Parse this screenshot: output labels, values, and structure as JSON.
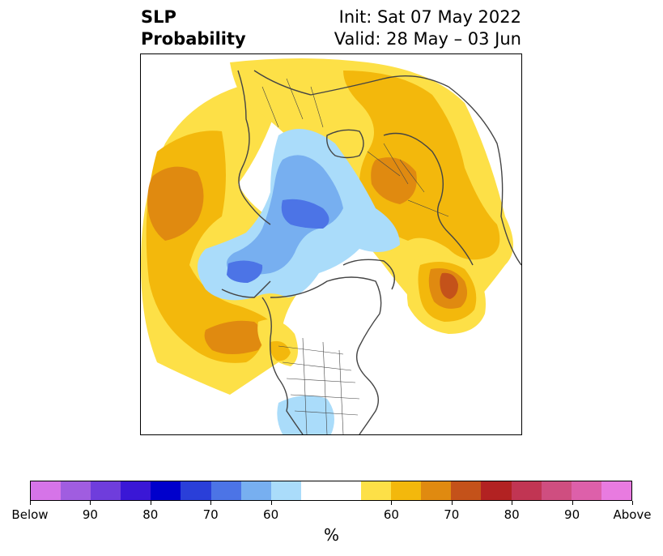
{
  "title": {
    "left_line1": "SLP",
    "left_line2": "Probability",
    "right_line1": "Init: Sat 07 May 2022",
    "right_line2": "Valid: 28 May – 03 Jun"
  },
  "colorbar": {
    "colors": [
      "#d674e8",
      "#a05de0",
      "#6f3ddc",
      "#3a17d6",
      "#0000cc",
      "#2a3fd9",
      "#4c74e6",
      "#77aff0",
      "#aadcfa",
      "#ffffff",
      "#ffffff",
      "#fde047",
      "#f3b80c",
      "#e08a10",
      "#c4521a",
      "#b22222",
      "#c13553",
      "#cf4e80",
      "#dd60aa",
      "#e87be0"
    ],
    "tick_labels": [
      "Below",
      "90",
      "80",
      "70",
      "60",
      "60",
      "70",
      "80",
      "90",
      "Above"
    ],
    "unit_label": "%"
  },
  "map": {
    "projection": "north polar stereographic",
    "coastline_color": "#444444",
    "anomaly_colors": {
      "below_60": "#aadcfa",
      "below_70": "#77aff0",
      "below_80": "#4c74e6",
      "above_60": "#fde047",
      "above_70": "#f3b80c",
      "above_80": "#e08a10",
      "above_90": "#c4521a"
    }
  }
}
